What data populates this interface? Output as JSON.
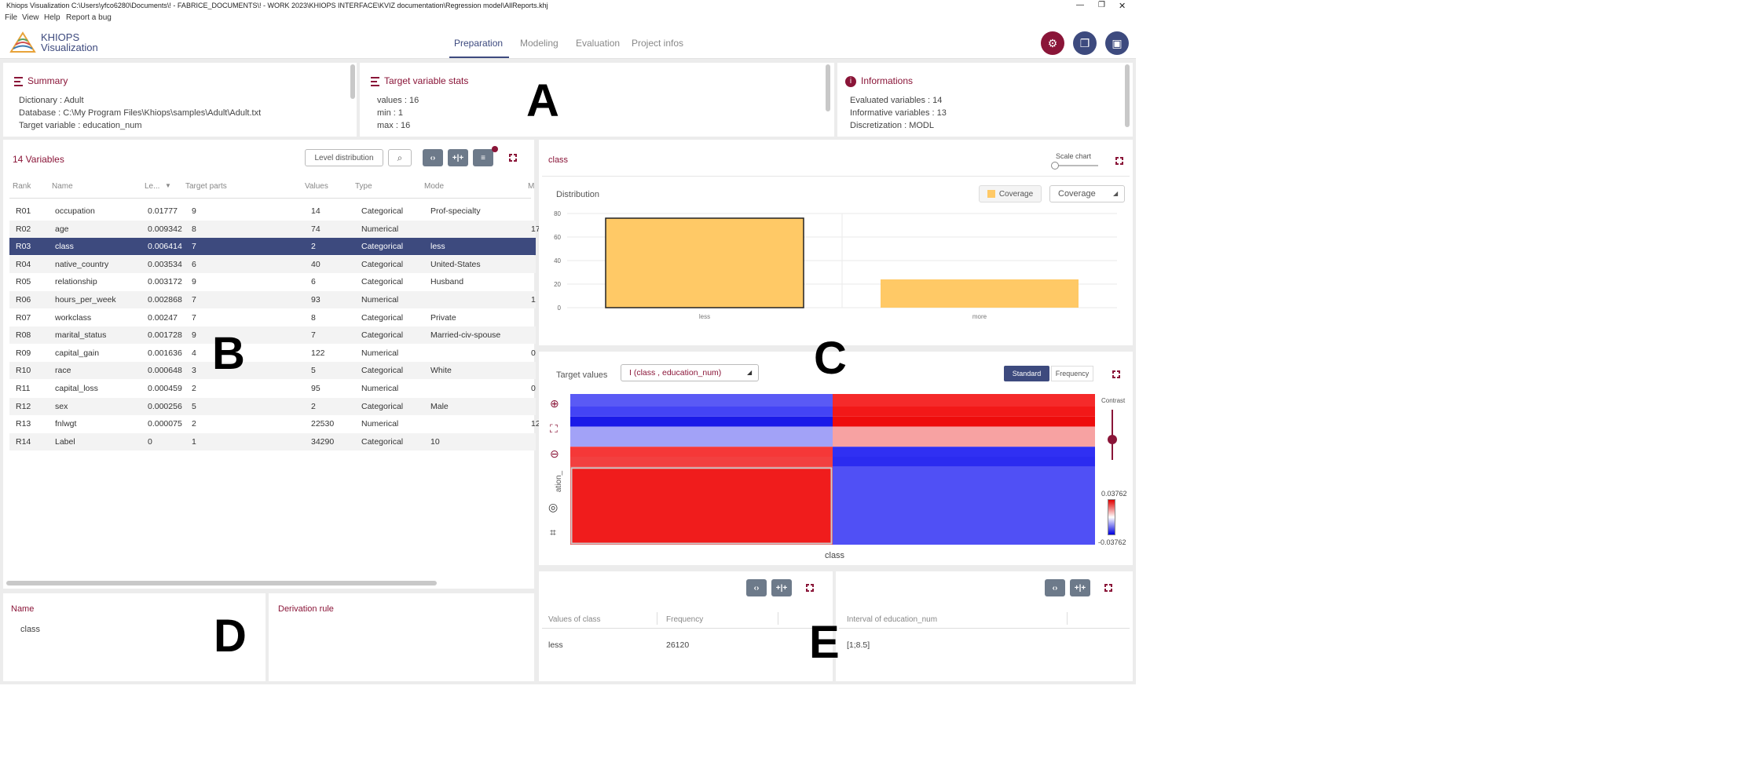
{
  "window": {
    "title": "Khiops Visualization C:\\Users\\yfco6280\\Documents\\! - FABRICE_DOCUMENTS\\! - WORK 2023\\KHIOPS INTERFACE\\KVIZ documentation\\Regression model\\AllReports.khj",
    "controls": [
      "—",
      "❐",
      "✕"
    ]
  },
  "menu": [
    "File",
    "View",
    "Help",
    "Report a bug"
  ],
  "logo": {
    "line1": "KHIOPS",
    "line2": "Visualization"
  },
  "tabs": [
    "Preparation",
    "Modeling",
    "Evaluation",
    "Project infos"
  ],
  "header_buttons": {
    "settings_color": "#8a1538",
    "other_color": "#3d4a7e"
  },
  "summary": {
    "title": "Summary",
    "dictionary": "Dictionary : Adult",
    "database": "Database : C:\\My Program Files\\Khiops\\samples\\Adult\\Adult.txt",
    "target": "Target variable : education_num"
  },
  "target_stats": {
    "title": "Target variable stats",
    "values": "values : 16",
    "min": "min : 1",
    "max": "max : 16"
  },
  "informations": {
    "title": "Informations",
    "evaluated": "Evaluated variables : 14",
    "informative": "Informative variables : 13",
    "discretization": "Discretization : MODL"
  },
  "variables": {
    "title": "14 Variables",
    "level_button": "Level distribution",
    "columns": [
      "Rank",
      "Name",
      "Le...",
      "Target parts",
      "Values",
      "Type",
      "Mode",
      "M"
    ],
    "rows": [
      {
        "rank": "R01",
        "name": "occupation",
        "level": "0.01777",
        "parts": "9",
        "values": "14",
        "type": "Categorical",
        "mode": "Prof-specialty",
        "extra": ""
      },
      {
        "rank": "R02",
        "name": "age",
        "level": "0.009342",
        "parts": "8",
        "values": "74",
        "type": "Numerical",
        "mode": "",
        "extra": "17"
      },
      {
        "rank": "R03",
        "name": "class",
        "level": "0.006414",
        "parts": "7",
        "values": "2",
        "type": "Categorical",
        "mode": "less",
        "extra": ""
      },
      {
        "rank": "R04",
        "name": "native_country",
        "level": "0.003534",
        "parts": "6",
        "values": "40",
        "type": "Categorical",
        "mode": "United-States",
        "extra": ""
      },
      {
        "rank": "R05",
        "name": "relationship",
        "level": "0.003172",
        "parts": "9",
        "values": "6",
        "type": "Categorical",
        "mode": "Husband",
        "extra": ""
      },
      {
        "rank": "R06",
        "name": "hours_per_week",
        "level": "0.002868",
        "parts": "7",
        "values": "93",
        "type": "Numerical",
        "mode": "",
        "extra": "1"
      },
      {
        "rank": "R07",
        "name": "workclass",
        "level": "0.00247",
        "parts": "7",
        "values": "8",
        "type": "Categorical",
        "mode": "Private",
        "extra": ""
      },
      {
        "rank": "R08",
        "name": "marital_status",
        "level": "0.001728",
        "parts": "9",
        "values": "7",
        "type": "Categorical",
        "mode": "Married-civ-spouse",
        "extra": ""
      },
      {
        "rank": "R09",
        "name": "capital_gain",
        "level": "0.001636",
        "parts": "4",
        "values": "122",
        "type": "Numerical",
        "mode": "",
        "extra": "0"
      },
      {
        "rank": "R10",
        "name": "race",
        "level": "0.000648",
        "parts": "3",
        "values": "5",
        "type": "Categorical",
        "mode": "White",
        "extra": ""
      },
      {
        "rank": "R11",
        "name": "capital_loss",
        "level": "0.000459",
        "parts": "2",
        "values": "95",
        "type": "Numerical",
        "mode": "",
        "extra": "0"
      },
      {
        "rank": "R12",
        "name": "sex",
        "level": "0.000256",
        "parts": "5",
        "values": "2",
        "type": "Categorical",
        "mode": "Male",
        "extra": ""
      },
      {
        "rank": "R13",
        "name": "fnlwgt",
        "level": "0.000075",
        "parts": "2",
        "values": "22530",
        "type": "Numerical",
        "mode": "",
        "extra": "12"
      },
      {
        "rank": "R14",
        "name": "Label",
        "level": "0",
        "parts": "1",
        "values": "34290",
        "type": "Categorical",
        "mode": "10",
        "extra": ""
      }
    ],
    "selected_index": 2
  },
  "detail": {
    "name_label": "Name",
    "name_value": "class",
    "derivation_label": "Derivation rule"
  },
  "chart_panel": {
    "title": "class",
    "scale_label": "Scale chart",
    "distribution_label": "Distribution",
    "legend_label": "Coverage",
    "select_label": "Coverage"
  },
  "chart_data": {
    "type": "bar",
    "categories": [
      "less",
      "more"
    ],
    "values": [
      76,
      24
    ],
    "ylim": [
      0,
      80
    ],
    "yticks": [
      "80",
      "60",
      "40",
      "20",
      "0"
    ],
    "color": "#ffc966"
  },
  "target_values": {
    "label": "Target values",
    "select": "I (class , education_num)",
    "standard": "Standard",
    "frequency": "Frequency",
    "contrast_label": "Contrast",
    "scale_max": "0.03762",
    "scale_min": "-0.03762",
    "y_axis": "ation_",
    "x_axis": "class"
  },
  "heatmap": {
    "columns": [
      "less",
      "more"
    ],
    "rows": [
      {
        "weight": 1.0,
        "colors": [
          "#5a5af5",
          "#f52a2a"
        ]
      },
      {
        "weight": 0.8,
        "colors": [
          "#4444f5",
          "#f21818"
        ]
      },
      {
        "weight": 0.8,
        "colors": [
          "#1a1ae8",
          "#ee0c0c"
        ]
      },
      {
        "weight": 1.6,
        "colors": [
          "#a2a2f7",
          "#f7a2a2"
        ]
      },
      {
        "weight": 0.8,
        "colors": [
          "#f53838",
          "#3030f3"
        ]
      },
      {
        "weight": 0.8,
        "colors": [
          "#f24040",
          "#2b2bf0"
        ]
      },
      {
        "weight": 6.2,
        "colors": [
          "#f01c1c",
          "#5050f5"
        ]
      }
    ]
  },
  "bottom_left": {
    "col1": "Values of class",
    "col2": "Frequency",
    "row_value": "less",
    "row_freq": "26120"
  },
  "bottom_right": {
    "col1": "Interval of education_num",
    "row_value": "[1;8.5]"
  },
  "letters": [
    "A",
    "B",
    "C",
    "D",
    "E"
  ]
}
